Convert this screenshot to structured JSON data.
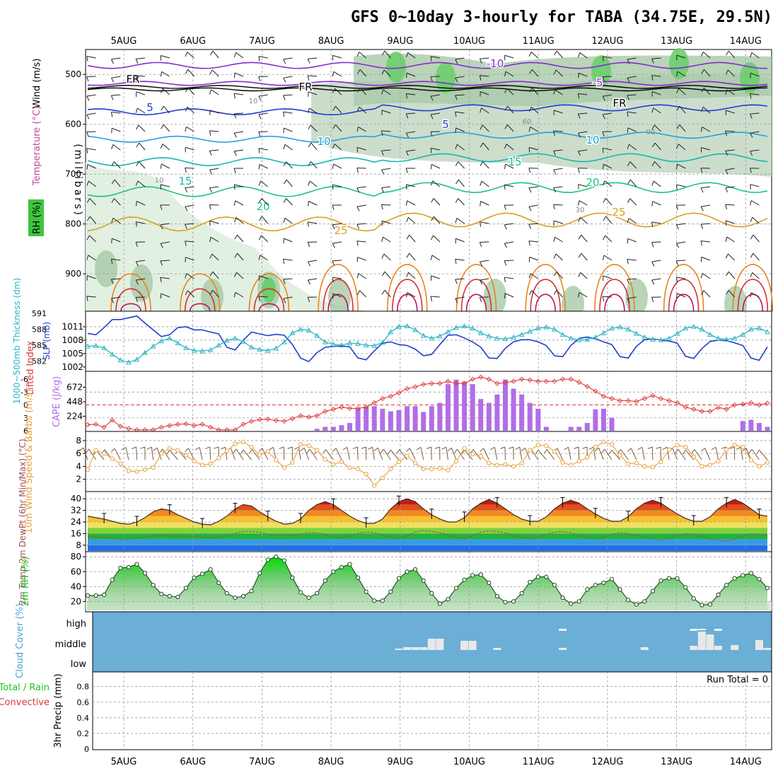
{
  "chart_data": {
    "type": "line",
    "title": "GFS 0~10day 3-hourly for TABA (34.75E, 29.5N)",
    "days": [
      "5AUG",
      "6AUG",
      "7AUG",
      "8AUG",
      "9AUG",
      "10AUG",
      "11AUG",
      "12AUG",
      "13AUG",
      "14AUG"
    ],
    "panels": {
      "upper_air": {
        "ylabel": "(millibars)",
        "label_wind": "Wind (m/s)",
        "label_temp": "Temperature (°C)",
        "label_rh": "RH (%)",
        "yticks": [
          500,
          600,
          700,
          800,
          900
        ],
        "ylim": [
          1000,
          450
        ],
        "freezing_label": "FR",
        "isotherm_labels": [
          "-10",
          "-5",
          "5",
          "10",
          "15",
          "20",
          "25"
        ],
        "rh_contour_labels": [
          "10",
          "30",
          "60",
          "90"
        ]
      },
      "slp_thickness": {
        "ylabel_left": "1000~500mb Thickness (dm)",
        "ylabel_right": "SLP (mb)",
        "thickness_ticks": [
          582,
          585,
          588,
          591
        ],
        "slp_ticks": [
          1002,
          1005,
          1008,
          1011
        ],
        "slp_color": "#1f3fd0",
        "thickness_color": "#2ab5c4",
        "slp": [
          1009.5,
          1009.2,
          1010.8,
          1012.6,
          1012.6,
          1013.0,
          1013.4,
          1011.8,
          1010.3,
          1008.8,
          1009.2,
          1010.8,
          1011.0,
          1010.3,
          1010.3,
          1009.8,
          1009.4,
          1006.4,
          1005.8,
          1008.0,
          1009.8,
          1009.4,
          1009.0,
          1009.3,
          1009.1,
          1007.0,
          1004.0,
          1003.2,
          1005.2,
          1006.4,
          1006.6,
          1006.7,
          1006.5,
          1004.0,
          1003.6,
          1005.6,
          1007.3,
          1007.6,
          1007.0,
          1006.8,
          1006.0,
          1004.5,
          1004.8,
          1007.0,
          1009.1,
          1009.2,
          1008.5,
          1007.6,
          1006.4,
          1004.0,
          1003.9,
          1006.2,
          1007.6,
          1008.1,
          1008.1,
          1007.6,
          1006.8,
          1004.5,
          1004.3,
          1006.8,
          1008.4,
          1008.7,
          1008.3,
          1007.6,
          1007.0,
          1004.3,
          1004.0,
          1006.6,
          1008.1,
          1008.3,
          1008.0,
          1007.8,
          1007.3,
          1004.4,
          1003.9,
          1006.1,
          1007.7,
          1008.0,
          1007.9,
          1007.4,
          1006.8,
          1004.0,
          1003.5,
          1006.5
        ],
        "thickness": [
          584.8,
          584.9,
          584.5,
          583.3,
          582.2,
          581.8,
          582.3,
          583.6,
          584.8,
          585.8,
          586.3,
          585.4,
          584.5,
          584.0,
          583.9,
          584.1,
          585.0,
          585.9,
          586.3,
          585.7,
          584.6,
          584.2,
          584.0,
          584.4,
          585.6,
          587.3,
          588.0,
          587.8,
          586.8,
          585.6,
          585.2,
          585.0,
          585.4,
          585.3,
          585.0,
          584.9,
          585.5,
          587.5,
          588.5,
          588.6,
          587.9,
          586.8,
          586.3,
          586.7,
          587.5,
          588.3,
          588.6,
          588.2,
          587.3,
          586.7,
          586.3,
          586.2,
          586.5,
          587.0,
          587.6,
          588.2,
          588.4,
          588.0,
          587.0,
          586.3,
          586.0,
          586.1,
          586.5,
          587.3,
          588.2,
          588.4,
          588.0,
          587.2,
          586.5,
          586.1,
          586.0,
          586.3,
          587.2,
          588.2,
          588.5,
          588.0,
          587.0,
          586.3,
          586.1,
          586.3,
          587.0,
          588.0,
          588.2,
          587.5
        ]
      },
      "instability": {
        "ylabel_left": "Lifted Index",
        "ylabel_right": "CAPE (J/kg)",
        "li_ticks": [
          -6,
          -3,
          0,
          3,
          6
        ],
        "cape_ticks": [
          224,
          448,
          672
        ],
        "li_color": "#e03a3a",
        "cape_color": "#b06ee8",
        "lifted_index": [
          4.6,
          4.5,
          5.2,
          3.5,
          5.0,
          5.5,
          5.8,
          5.8,
          5.8,
          5.2,
          4.8,
          4.5,
          4.4,
          4.8,
          4.5,
          5.2,
          5.8,
          5.8,
          5.8,
          4.5,
          3.8,
          3.4,
          3.3,
          3.6,
          3.8,
          3.2,
          2.5,
          2.8,
          2.5,
          1.5,
          1.0,
          0.5,
          0.8,
          0.8,
          0.5,
          -0.5,
          -1.5,
          -2.0,
          -2.8,
          -3.8,
          -4.2,
          -4.8,
          -5.0,
          -5.0,
          -5.5,
          -5.0,
          -5.0,
          -6.0,
          -6.5,
          -6.0,
          -5.0,
          -5.2,
          -5.5,
          -6.0,
          -5.8,
          -5.5,
          -5.5,
          -5.5,
          -6.0,
          -6.0,
          -5.3,
          -4.3,
          -3.2,
          -2.0,
          -1.5,
          -1.0,
          -1.0,
          -0.8,
          -1.5,
          -2.2,
          -1.5,
          -1.0,
          -0.5,
          0.5,
          1.0,
          1.5,
          1.5,
          0.6,
          1.0,
          0.0,
          -0.2,
          -0.5,
          0.0,
          -0.4
        ],
        "cape": [
          0,
          0,
          0,
          0,
          0,
          0,
          0,
          0,
          0,
          0,
          0,
          0,
          0,
          0,
          0,
          0,
          0,
          0,
          0,
          0,
          0,
          0,
          0,
          0,
          0,
          0,
          0,
          0,
          30,
          60,
          60,
          85,
          120,
          350,
          370,
          380,
          340,
          300,
          320,
          380,
          380,
          290,
          380,
          430,
          720,
          790,
          760,
          720,
          490,
          430,
          560,
          790,
          650,
          560,
          430,
          340,
          60,
          0,
          0,
          60,
          60,
          120,
          330,
          340,
          200,
          0,
          0,
          0,
          0,
          0,
          0,
          0,
          0,
          0,
          0,
          0,
          0,
          0,
          0,
          0,
          150,
          170,
          120,
          60
        ]
      },
      "wind10m": {
        "ylabel": "10m Wind Speed & Barbs (m/s)",
        "yticks": [
          2,
          4,
          6,
          8
        ],
        "color": "#e8a23a",
        "speed": [
          3.5,
          6.5,
          6.0,
          5.2,
          4.4,
          3.3,
          3.2,
          3.5,
          3.8,
          6.0,
          6.8,
          6.5,
          5.7,
          4.8,
          4.2,
          4.4,
          5.3,
          6.4,
          7.5,
          7.8,
          7.0,
          5.8,
          6.3,
          5.0,
          3.8,
          4.6,
          7.4,
          7.2,
          6.5,
          5.1,
          4.3,
          4.7,
          3.8,
          3.6,
          2.8,
          1.0,
          2.2,
          3.6,
          4.7,
          5.6,
          4.5,
          3.6,
          3.6,
          3.7,
          3.4,
          4.8,
          6.8,
          5.9,
          5.6,
          4.5,
          4.2,
          4.3,
          4.0,
          4.5,
          6.5,
          7.3,
          7.2,
          6.3,
          4.6,
          4.2,
          4.8,
          5.4,
          7.0,
          7.8,
          7.4,
          5.7,
          4.4,
          4.5,
          4.0,
          3.9,
          4.7,
          6.6,
          7.3,
          7.0,
          5.5,
          4.0,
          4.2,
          4.8,
          6.6,
          7.3,
          7.0,
          5.0,
          4.0,
          4.6
        ]
      },
      "temperature": {
        "ylabel": "2m Temp 2m DewPt (6hr Min/Max) (°C)",
        "yticks": [
          8,
          16,
          24,
          32,
          40
        ],
        "temp": [
          28,
          27,
          26,
          24.5,
          23,
          22.5,
          24,
          27,
          31,
          33,
          32,
          29,
          26.5,
          24,
          22.5,
          22,
          24.5,
          28,
          33,
          36,
          35,
          31,
          27.5,
          24.5,
          22.5,
          23,
          26,
          32,
          36,
          38,
          36,
          32,
          28,
          25,
          23,
          23,
          26,
          33,
          38,
          40,
          38,
          33,
          29,
          26,
          24,
          24,
          27,
          33,
          37,
          39.5,
          37,
          33,
          29,
          26,
          24.5,
          24.5,
          27.5,
          33,
          37,
          39,
          37,
          33,
          29.5,
          26.5,
          24.5,
          24.5,
          27.5,
          33,
          37,
          39,
          37,
          33,
          29.5,
          26.5,
          24.5,
          24.5,
          27.5,
          33,
          37,
          39.5,
          37,
          33,
          29,
          28
        ],
        "dewpoint": [
          14,
          13.5,
          13.5,
          13,
          12,
          12.5,
          13,
          13.5,
          14.5,
          14.5,
          14.5,
          14.3,
          14.2,
          14,
          13.5,
          13,
          13.2,
          14.5,
          16,
          17.5,
          17.5,
          17,
          15.5,
          15,
          15.3,
          14.5,
          15.5,
          16.5,
          16.5,
          15.5,
          13.5,
          13,
          14.5,
          16.2,
          17,
          16.5,
          15,
          13.5,
          12.5,
          14.5,
          17,
          18.2,
          17.5,
          16.5,
          15.5,
          13.5,
          12.5,
          14.5,
          17,
          18,
          17.5,
          16.5,
          15,
          13.5,
          12.2,
          13.5,
          15.5,
          17,
          17.3,
          16.5,
          15,
          13.5,
          12,
          13.5,
          15.5,
          16.5,
          16,
          15,
          13.5,
          12.5,
          11,
          13,
          15,
          16,
          15.5,
          14,
          12.5,
          11.5,
          10.5,
          12.5,
          14.5,
          15.8,
          15.5,
          15
        ]
      },
      "rh2m": {
        "ylabel": "2m RH (%)",
        "yticks": [
          20,
          40,
          60,
          80
        ],
        "values": [
          28,
          28,
          29,
          49,
          65,
          66,
          70,
          58,
          42,
          30,
          27,
          26,
          38,
          52,
          57,
          63,
          45,
          31,
          25,
          27,
          34,
          58,
          76,
          80,
          75,
          52,
          32,
          25,
          31,
          48,
          60,
          66,
          70,
          52,
          33,
          21,
          21,
          33,
          51,
          60,
          63,
          48,
          31,
          17,
          23,
          38,
          49,
          55,
          56,
          45,
          27,
          19,
          20,
          31,
          46,
          53,
          53,
          42,
          25,
          17,
          20,
          36,
          42,
          45,
          50,
          36,
          22,
          16,
          20,
          34,
          48,
          51,
          51,
          39,
          24,
          15,
          16,
          29,
          42,
          51,
          55,
          58,
          50,
          38
        ]
      },
      "cloud": {
        "ylabel": "Cloud Cover (%)",
        "levels": [
          "high",
          "middle",
          "low"
        ],
        "bg_color": "#6baed6",
        "mid_cover": [
          0,
          0,
          0,
          0,
          0,
          0,
          0,
          0,
          0,
          0,
          0,
          0,
          0,
          0,
          0,
          0,
          0,
          0,
          0,
          0,
          0,
          0,
          0,
          0,
          0,
          0,
          0,
          0,
          0,
          0,
          0,
          0,
          0,
          0,
          0,
          0,
          0,
          0,
          2,
          4,
          4,
          4,
          16,
          16,
          0,
          0,
          13,
          13,
          0,
          0,
          3,
          0,
          0,
          0,
          0,
          0,
          0,
          0,
          3,
          0,
          0,
          0,
          0,
          0,
          0,
          0,
          0,
          0,
          4,
          0,
          0,
          0,
          0,
          0,
          6,
          26,
          22,
          6,
          0,
          7,
          0,
          0,
          14,
          3
        ],
        "high_cover": [
          0,
          0,
          0,
          0,
          0,
          0,
          0,
          0,
          0,
          0,
          0,
          0,
          0,
          0,
          0,
          0,
          0,
          0,
          0,
          0,
          0,
          0,
          0,
          0,
          0,
          0,
          0,
          0,
          0,
          0,
          0,
          0,
          0,
          0,
          0,
          0,
          0,
          0,
          0,
          0,
          0,
          0,
          0,
          0,
          0,
          0,
          0,
          0,
          0,
          0,
          0,
          0,
          0,
          0,
          0,
          0,
          0,
          0,
          3,
          0,
          0,
          0,
          0,
          0,
          0,
          0,
          0,
          0,
          0,
          0,
          0,
          0,
          0,
          0,
          3,
          2,
          0,
          3,
          0,
          0,
          0,
          0,
          0,
          0
        ]
      },
      "precip": {
        "ylabel": "3hr Precip (mm)",
        "legend": [
          "Total / Rain",
          "Convective"
        ],
        "legend_colors": [
          "#1fc41f",
          "#e03a3a"
        ],
        "yticks": [
          0,
          0.2,
          0.4,
          0.6,
          0.8
        ],
        "run_total_label": "Run Total = 0",
        "values": []
      }
    }
  }
}
